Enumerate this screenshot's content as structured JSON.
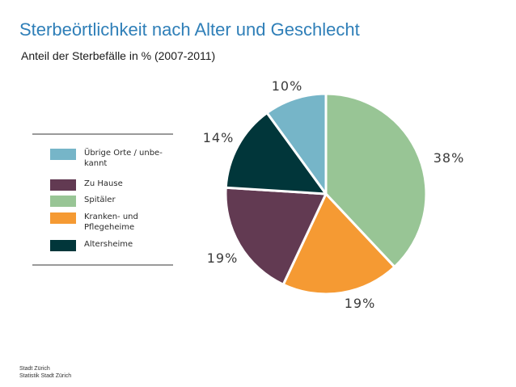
{
  "header": {
    "title": "Sterbeörtlichkeit nach Alter und Geschlecht",
    "subtitle": "Anteil der Sterbefälle in % (2007-2011)"
  },
  "chart_data": {
    "type": "pie",
    "title": "",
    "slices": [
      {
        "label": "Spitäler",
        "value": 38,
        "display": "38%",
        "color": "#98c595"
      },
      {
        "label": "Kranken- und\nPflegeheime",
        "value": 19,
        "display": "19%",
        "color": "#f59a33"
      },
      {
        "label": "Zu Hause",
        "value": 19,
        "display": "19%",
        "color": "#623a52"
      },
      {
        "label": "Altersheime",
        "value": 14,
        "display": "14%",
        "color": "#01363a"
      },
      {
        "label": "Übrige Orte / unbe-\nkannt",
        "value": 10,
        "display": "10%",
        "color": "#76b5c8"
      }
    ],
    "legend_order": [
      "Übrige Orte / unbe-\nkannt",
      "Zu Hause",
      "Spitäler",
      "Kranken- und\nPflegeheime",
      "Altersheime"
    ],
    "legend_position": "left"
  },
  "footer": {
    "line1": "Stadt Zürich",
    "line2": "Statistik Stadt Zürich"
  }
}
